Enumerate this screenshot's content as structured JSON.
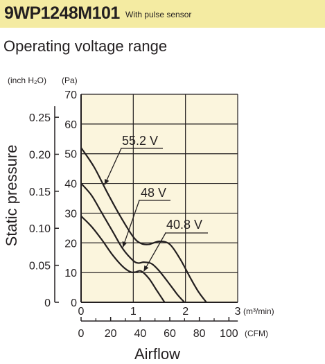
{
  "header": {
    "model": "9WP1248M101",
    "subtitle": "With pulse sensor"
  },
  "section_title": "Operating voltage range",
  "chart_data": {
    "type": "line",
    "title": "Operating voltage range",
    "xlabel": "Airflow",
    "ylabel": "Static pressure",
    "x_units": {
      "primary": "(m³/min)",
      "secondary": "(CFM)"
    },
    "y_units": {
      "primary": "(Pa)",
      "secondary": "(inch H₂O)"
    },
    "xlim": [
      0,
      3
    ],
    "ylim": [
      0,
      70
    ],
    "x_ticks": [
      "0",
      "1",
      "2",
      "3"
    ],
    "y_ticks": [
      "0",
      "10",
      "20",
      "30",
      "40",
      "50",
      "60",
      "70"
    ],
    "cfm_ticks": [
      "0",
      "20",
      "40",
      "60",
      "80",
      "100"
    ],
    "inch_ticks": [
      "0",
      "0.05",
      "0.10",
      "0.15",
      "0.20",
      "0.25"
    ],
    "grid": true,
    "background": "#fbf5dd",
    "series": [
      {
        "name": "55.2 V",
        "x": [
          0,
          0.25,
          0.5,
          0.75,
          1.0,
          1.15,
          1.3,
          1.5,
          1.7,
          1.9,
          2.1,
          2.25,
          2.4
        ],
        "y": [
          52,
          45.5,
          37,
          29,
          22,
          19.8,
          19.5,
          20.5,
          19.5,
          14.5,
          8,
          3.5,
          0
        ]
      },
      {
        "name": "48 V",
        "x": [
          0,
          0.2,
          0.4,
          0.6,
          0.8,
          1.0,
          1.1,
          1.2,
          1.35,
          1.5,
          1.7,
          1.85,
          1.98
        ],
        "y": [
          40,
          36,
          30,
          24,
          18,
          14,
          13.2,
          13.5,
          13,
          10.5,
          6,
          2.5,
          0
        ]
      },
      {
        "name": "40.8 V",
        "x": [
          0,
          0.2,
          0.4,
          0.6,
          0.8,
          0.95,
          1.05,
          1.15,
          1.3,
          1.45,
          1.6
        ],
        "y": [
          29,
          25.5,
          21,
          16,
          12,
          10.2,
          10.2,
          10.5,
          8,
          4,
          0
        ]
      }
    ]
  }
}
